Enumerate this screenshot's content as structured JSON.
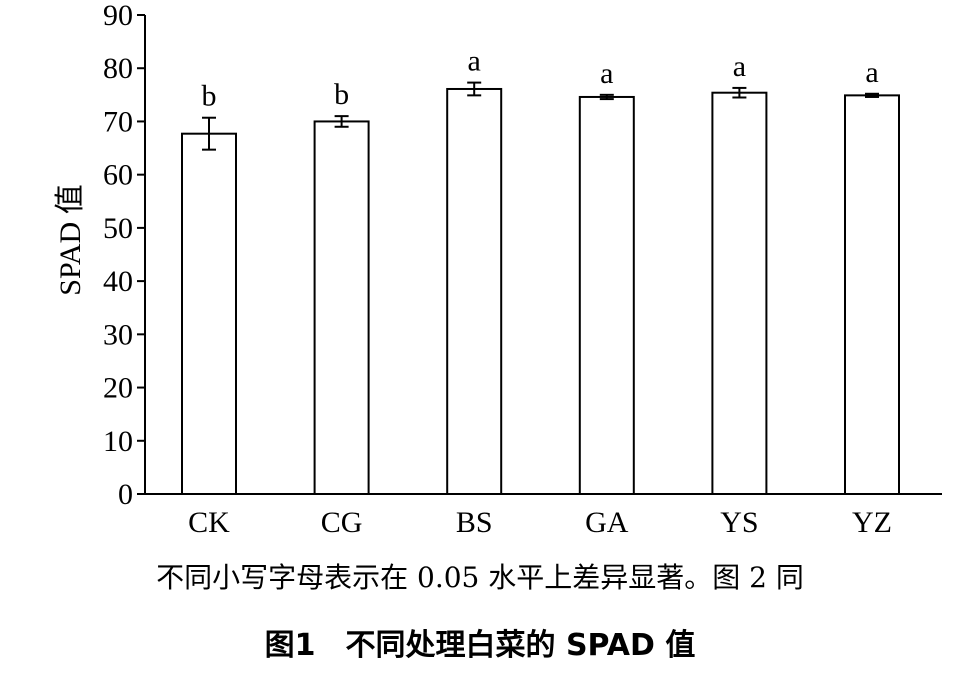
{
  "chart_data": {
    "type": "bar",
    "categories": [
      "CK",
      "CG",
      "BS",
      "GA",
      "YS",
      "YZ"
    ],
    "values": [
      67.7,
      70.0,
      76.1,
      74.6,
      75.4,
      74.9
    ],
    "errors": [
      3.0,
      1.0,
      1.2,
      0.4,
      0.9,
      0.3
    ],
    "significance": [
      "b",
      "b",
      "a",
      "a",
      "a",
      "a"
    ],
    "ylabel": "SPAD 值",
    "ylim": [
      0,
      90
    ],
    "yticks": [
      0,
      10,
      20,
      30,
      40,
      50,
      60,
      70,
      80,
      90
    ],
    "grid": false
  },
  "note": "不同小写字母表示在 0.05 水平上差异显著。图 2 同",
  "caption": "图1　不同处理白菜的 SPAD 值"
}
